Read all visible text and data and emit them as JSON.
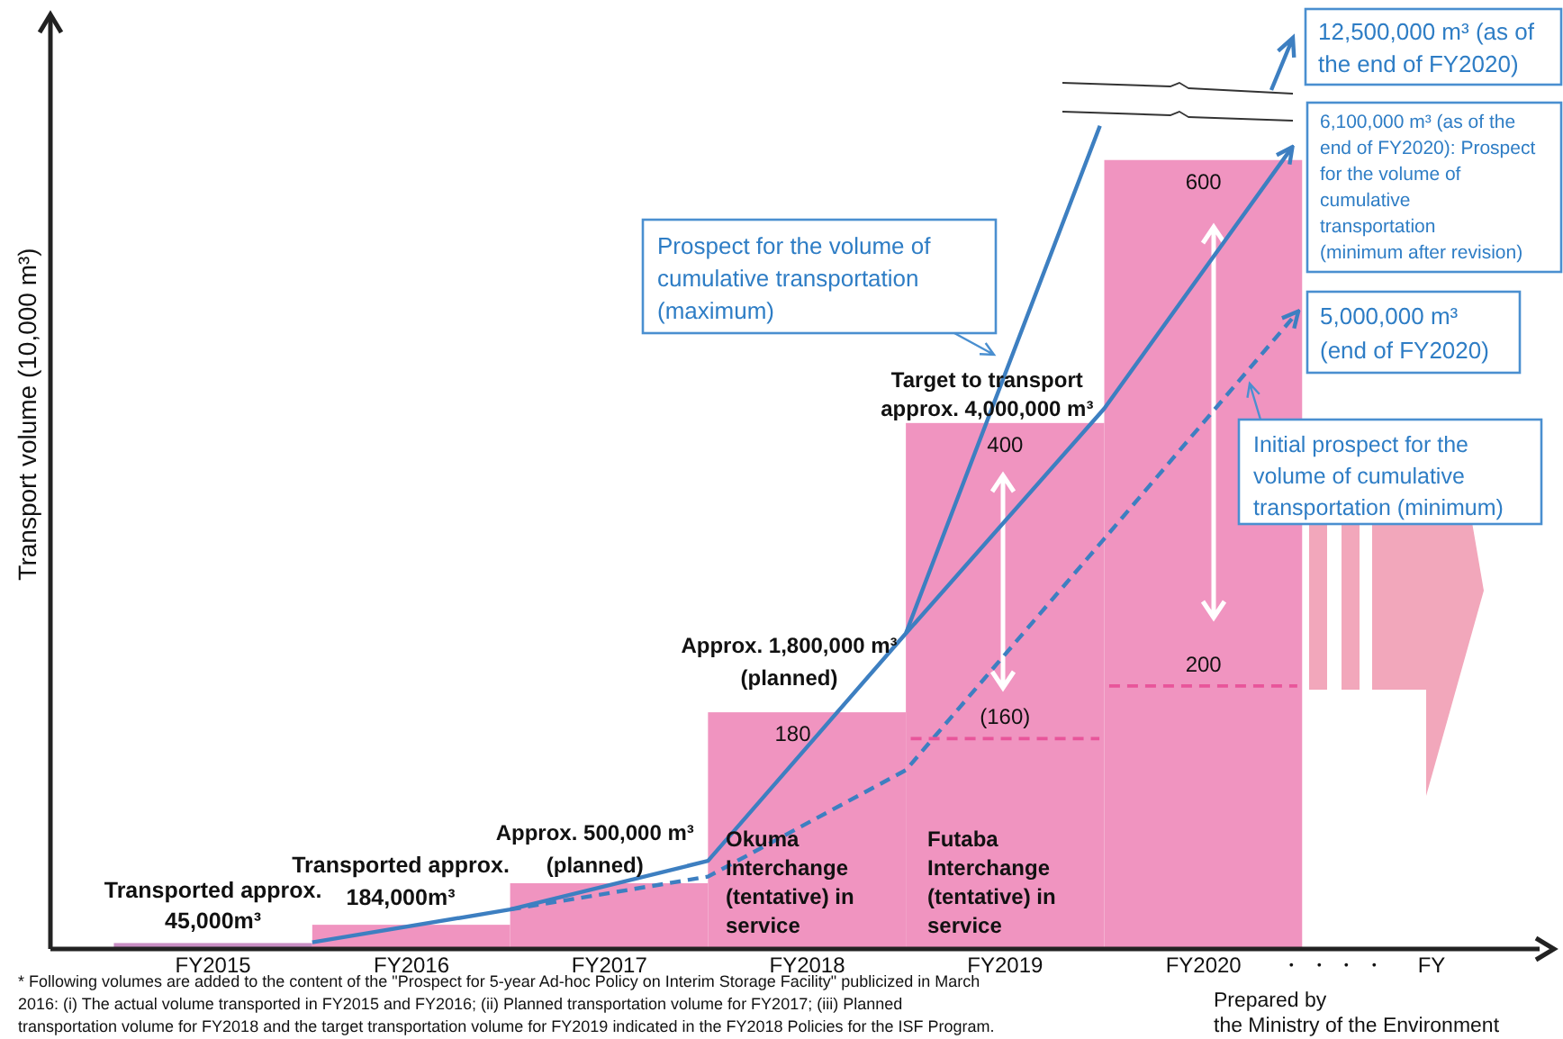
{
  "chart_data": {
    "type": "bar",
    "ylabel": "Transport volume (10,000 m³)",
    "x": [
      "2015-10-01",
      "2016-10-01",
      "2017-10-01",
      "2018-10-01",
      "2019-10-01",
      "2020-10-01"
    ],
    "xlim": [
      "2014-12-05",
      "2022-06-13"
    ],
    "xticks": [
      {
        "value": "2015-10-01",
        "label": "FY2015"
      },
      {
        "value": "2016-10-01",
        "label": "FY2016"
      },
      {
        "value": "2017-10-01",
        "label": "FY2017"
      },
      {
        "value": "2018-10-01",
        "label": "FY2018"
      },
      {
        "value": "2019-10-01",
        "label": "FY2019"
      },
      {
        "value": "2020-10-01",
        "label": "FY2020"
      }
    ],
    "ylim": [
      0,
      708
    ],
    "tick_labels": "x",
    "series": [
      {
        "type": "bar",
        "values": [
          4.5,
          18.4,
          50,
          180,
          400,
          600
        ],
        "colors": [
          "#c98ec4",
          "#f094c0",
          "#f094c0",
          "#f094c0",
          "#f094c0",
          "#f094c0"
        ],
        "value_labels": [
          null,
          null,
          null,
          "180",
          "400",
          "600"
        ]
      },
      {
        "type": "line",
        "x": [
          "2016-04-01",
          "2017-04-01",
          "2018-04-01",
          "2019-04-01",
          "2020-03-24"
        ],
        "values": [
          5,
          30,
          67,
          240,
          626
        ],
        "color": "#3d7fc1",
        "line_style": "solid",
        "marker": "none"
      },
      {
        "type": "line",
        "x": [
          "2019-04-01",
          "2020-04-01",
          "2021-03-14"
        ],
        "values": [
          240,
          411,
          610
        ],
        "color": "#3d7fc1",
        "line_style": "solid",
        "marker": "none"
      },
      {
        "type": "line",
        "x": [
          "2017-04-01",
          "2018-04-01",
          "2019-04-01",
          "2020-04-01",
          "2021-03-25"
        ],
        "values": [
          30,
          55,
          136,
          312,
          485
        ],
        "color": "#3d7fc1",
        "line_style": "dashed",
        "marker": "none"
      },
      {
        "type": "line",
        "x": [
          "2019-04-10",
          "2019-10-01",
          "2020-03-23"
        ],
        "values": [
          160,
          160,
          160
        ],
        "color": "#e8559a",
        "line_style": "dashed",
        "marker": "none",
        "value_labels": [
          null,
          "(160)",
          null
        ]
      },
      {
        "type": "line",
        "x": [
          "2020-04-10",
          "2020-10-01",
          "2021-03-23"
        ],
        "values": [
          200,
          200,
          200
        ],
        "color": "#e8559a",
        "line_style": "dashed",
        "marker": "none",
        "value_labels": [
          null,
          "200",
          null
        ]
      }
    ],
    "annotations": [
      {
        "text": "Transported approx.\n45,000m³",
        "x": "2015-10-01",
        "y": 4.5
      },
      {
        "text": "Transported approx.\n184,000m³",
        "x": "2016-10-01",
        "y": 18.4
      },
      {
        "text": "Approx. 500,000 m³\n(planned)",
        "x": "2017-10-01",
        "y": 50
      },
      {
        "text": "Approx. 1,800,000 m³\n(planned)",
        "x": "2018-10-01",
        "y": 180
      },
      {
        "text": "Target to transport\napprox. 4,000,000 m³",
        "x": "2019-10-01",
        "y": 400
      },
      "Okuma\nInterchange\n(tentative) in\nservice",
      "Futaba\nInterchange\n(tentative) in\nservice",
      "・ ・ ・ ・",
      "FY",
      "Prospect for the volume of\ncumulative transportation\n(maximum)",
      "12,500,000 m³ (as of\nthe end of FY2020)",
      "6,100,000 m³ (as of the\nend of FY2020): Prospect\nfor the volume of\ncumulative\ntransportation\n(minimum after revision)",
      "5,000,000 m³\n(end of FY2020)",
      "Initial prospect for the\nvolume of cumulative\ntransportation (minimum)",
      "* Following volumes are added to the content of the \"Prospect for 5-year Ad-hoc Policy on Interim Storage Facility\" publicized in March\n2016: (i) The actual volume transported in FY2015 and FY2016; (ii) Planned transportation volume for FY2017; (iii) Planned\ntransportation volume for FY2018 and the target transportation volume for FY2019 indicated in the FY2018 Policies for the ISF Program.",
      "Prepared by\nthe Ministry of the Environment"
    ]
  }
}
